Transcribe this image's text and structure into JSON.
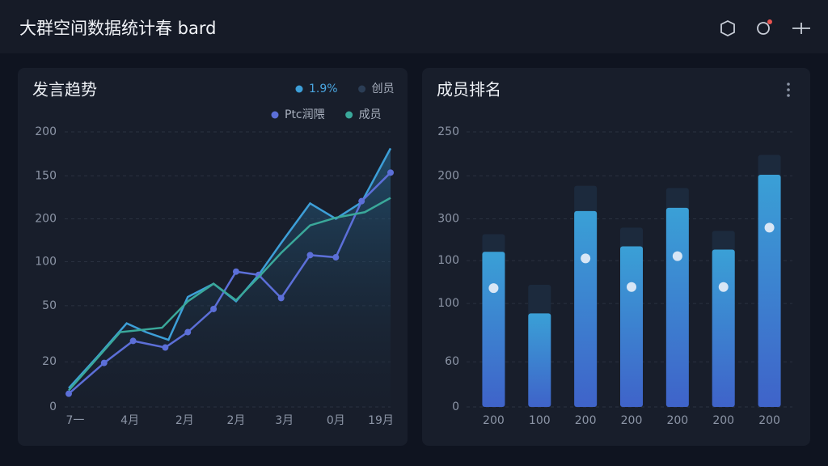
{
  "header": {
    "title": "大群空间数据统计春 bard"
  },
  "charts": [
    {
      "type": "line",
      "title": "发言趋势",
      "xlim": [
        0,
        100
      ],
      "xticks": [
        {
          "value": 2,
          "label": "7一"
        },
        {
          "value": 19,
          "label": "4月"
        },
        {
          "value": 36,
          "label": "2月"
        },
        {
          "value": 52,
          "label": "2月"
        },
        {
          "value": 67,
          "label": "3月"
        },
        {
          "value": 83,
          "label": "0月"
        },
        {
          "value": 97,
          "label": "19月"
        }
      ],
      "ylim": [
        0,
        250
      ],
      "yticks": [
        {
          "value": 250,
          "label": "200"
        },
        {
          "value": 210,
          "label": "150"
        },
        {
          "value": 171,
          "label": "200"
        },
        {
          "value": 132,
          "label": "100"
        },
        {
          "value": 92,
          "label": "50"
        },
        {
          "value": 41,
          "label": "20"
        },
        0
      ],
      "grid": true,
      "series": [
        {
          "name": "1.9%",
          "color": "#3d9fd8",
          "area": true,
          "x": [
            0,
            9,
            18,
            24,
            31,
            37,
            45,
            52,
            59,
            66,
            75,
            83,
            91,
            100
          ],
          "values": [
            17,
            46,
            76,
            68,
            61,
            100,
            112,
            96,
            120,
            149,
            185,
            171,
            186,
            235
          ]
        },
        {
          "name": "创员",
          "color": "#2b3d55",
          "x": [],
          "values": []
        },
        {
          "name": "Ptc润隈",
          "color": "#5c6fd8",
          "markers": true,
          "x": [
            0,
            11,
            20,
            30,
            37,
            45,
            52,
            59,
            66,
            75,
            83,
            91,
            100
          ],
          "values": [
            12,
            40,
            60,
            54,
            68,
            89,
            123,
            120,
            99,
            138,
            136,
            187,
            213
          ]
        },
        {
          "name": "成员",
          "color": "#3aa89a",
          "x": [
            0,
            16,
            29,
            37,
            45,
            52,
            59,
            66,
            75,
            83,
            92,
            100
          ],
          "values": [
            15,
            68,
            72,
            96,
            112,
            97,
            118,
            140,
            165,
            172,
            177,
            190
          ]
        }
      ]
    },
    {
      "type": "bar",
      "title": "成员排名",
      "categories": [
        "200",
        "100",
        "200",
        "200",
        "200",
        "200",
        "200"
      ],
      "values": [
        141,
        85,
        178,
        146,
        181,
        143,
        211
      ],
      "max_values": [
        157,
        111,
        201,
        163,
        199,
        160,
        229
      ],
      "marker_values": [
        108,
        null,
        135,
        109,
        137,
        109,
        163
      ],
      "color": "#3a8fd6",
      "max_color": "#1c2a3d",
      "marker_color": "#d8e6f5",
      "ylim": [
        0,
        250
      ],
      "yticks": [
        250,
        {
          "value": 210,
          "label": "200"
        },
        {
          "value": 171,
          "label": "300"
        },
        {
          "value": 133,
          "label": "100"
        },
        {
          "value": 94,
          "label": "100"
        },
        {
          "value": 41,
          "label": "60"
        },
        0
      ],
      "grid": true
    }
  ]
}
